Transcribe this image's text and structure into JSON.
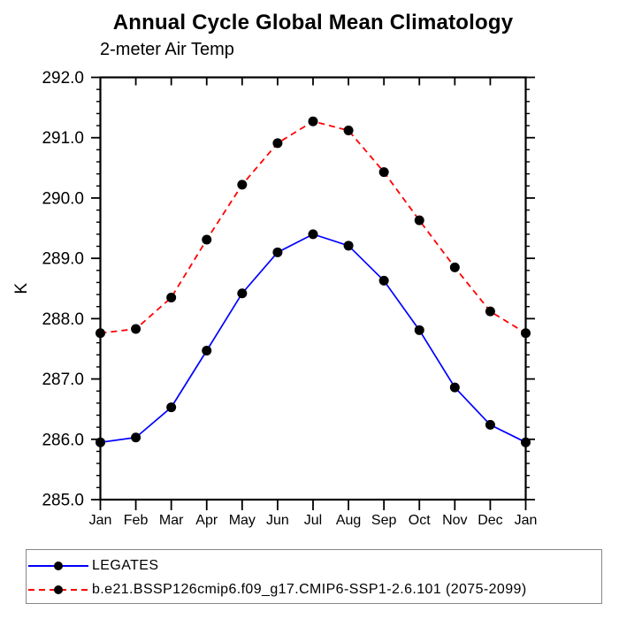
{
  "chart_data": {
    "type": "line",
    "title": "Annual Cycle Global Mean Climatology",
    "subtitle": "2-meter Air Temp",
    "xlabel": "",
    "ylabel": "K",
    "categories": [
      "Jan",
      "Feb",
      "Mar",
      "Apr",
      "May",
      "Jun",
      "Jul",
      "Aug",
      "Sep",
      "Oct",
      "Nov",
      "Dec",
      "Jan"
    ],
    "ylim": [
      285.0,
      292.0
    ],
    "ytick_interval": 1.0,
    "yminor_interval": 0.2,
    "ytick_labels": [
      "285.0",
      "286.0",
      "287.0",
      "288.0",
      "289.0",
      "290.0",
      "291.0",
      "292.0"
    ],
    "grid": false,
    "legend_position": "bottom-left-box",
    "axis_color": "#000000",
    "marker_color": "#000000",
    "series": [
      {
        "name": "LEGATES",
        "color": "#0000ff",
        "style": "solid",
        "marker": "filled-circle",
        "values": [
          285.95,
          286.03,
          286.53,
          287.47,
          288.42,
          289.1,
          289.4,
          289.21,
          288.63,
          287.81,
          286.86,
          286.24,
          285.95
        ]
      },
      {
        "name": "b.e21.BSSP126cmip6.f09_g17.CMIP6-SSP1-2.6.101 (2075-2099)",
        "color": "#ff0000",
        "style": "dashed",
        "marker": "filled-circle",
        "values": [
          287.76,
          287.83,
          288.35,
          289.31,
          290.22,
          290.91,
          291.27,
          291.12,
          290.43,
          289.63,
          288.85,
          288.12,
          287.76
        ]
      }
    ]
  }
}
